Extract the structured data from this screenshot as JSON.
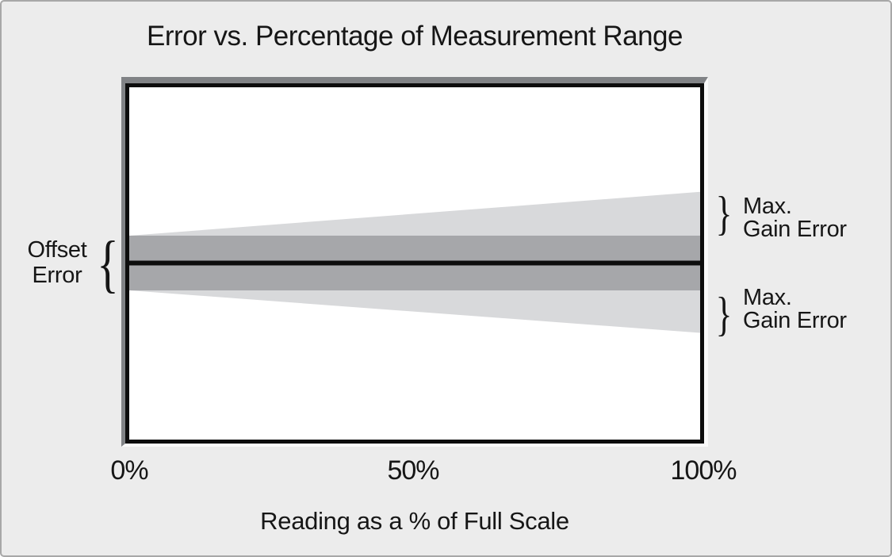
{
  "chart_data": {
    "type": "area",
    "title": "Error vs. Percentage of Measurement Range",
    "xlabel": "Reading as a % of Full Scale",
    "x_ticks": [
      "0%",
      "50%",
      "100%"
    ],
    "x_range": [
      0,
      100
    ],
    "y_units": "error relative to max offset error (offset band = ±1)",
    "grid": false,
    "legend": false,
    "series": [
      {
        "id": "total_band",
        "name": "Total error envelope (offset + max gain error)",
        "type": "band",
        "x": [
          0,
          100
        ],
        "upper": [
          1,
          2.6
        ],
        "lower": [
          -1,
          -2.55
        ],
        "color": "#d8d9db"
      },
      {
        "id": "offset_band",
        "name": "Offset error band",
        "type": "band",
        "x": [
          0,
          100
        ],
        "upper": [
          1,
          1
        ],
        "lower": [
          -1,
          -1
        ],
        "color": "#a6a7aa"
      },
      {
        "id": "ideal",
        "name": "Ideal response (zero error)",
        "type": "line",
        "x": [
          0,
          100
        ],
        "y": [
          0,
          0
        ],
        "color": "#0d0d0d",
        "width": 6
      }
    ],
    "annotations": {
      "offset": {
        "line1": "Offset",
        "line2": "Error",
        "side": "left",
        "marks": "offset error band height"
      },
      "gain_top": {
        "line1": "Max.",
        "line2": "Gain Error",
        "side": "right",
        "marks": "upper gain error at 100%"
      },
      "gain_bottom": {
        "line1": "Max.",
        "line2": "Gain Error",
        "side": "right",
        "marks": "lower gain error at 100%"
      }
    }
  },
  "glyphs": {
    "brace_left": "{",
    "brace_right": "}"
  },
  "colors": {
    "background": "#ececec",
    "frame": "#a8a8a8",
    "bevel": "#818386",
    "highlight": "#fafafa",
    "plot_border": "#0d0d0d",
    "offset_band": "#a6a7aa",
    "gain_band": "#d8d9db",
    "ideal_line": "#0d0d0d",
    "text": "#161616"
  }
}
